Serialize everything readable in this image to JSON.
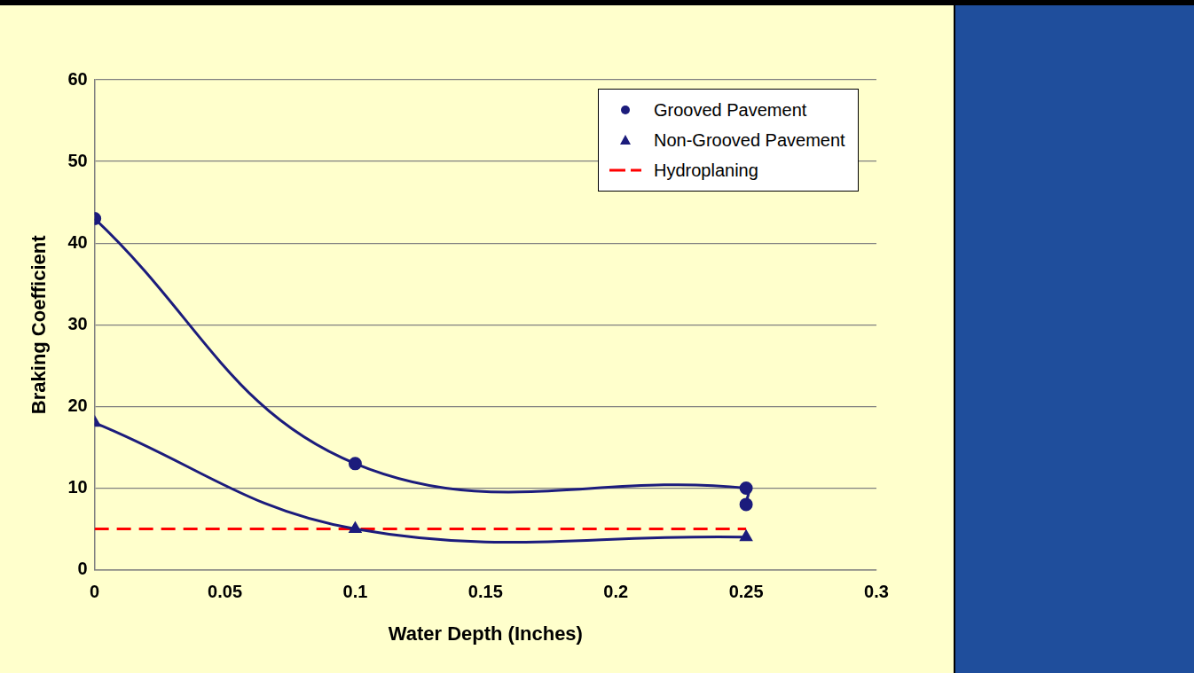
{
  "chart_data": {
    "type": "line",
    "x_label": "Water Depth (Inches)",
    "y_label": "Braking Coefficient",
    "xlim": [
      0,
      0.3
    ],
    "xticks": [
      0,
      0.05,
      0.1,
      0.15,
      0.2,
      0.25,
      0.3
    ],
    "ylim": [
      0,
      60
    ],
    "yticks": [
      0,
      10,
      20,
      30,
      40,
      50,
      60
    ],
    "grid": true,
    "legend": "upper right",
    "series": [
      {
        "name": "Grooved Pavement",
        "color": "#1c1c7c",
        "marker": "circle",
        "line_style": "solid",
        "x": [
          0,
          0.1,
          0.25,
          0.25
        ],
        "values": [
          43,
          13,
          10,
          8
        ]
      },
      {
        "name": "Non-Grooved Pavement",
        "color": "#1c1c7c",
        "marker": "triangle",
        "line_style": "solid",
        "x": [
          0,
          0.1,
          0.25
        ],
        "values": [
          18,
          5,
          4
        ]
      },
      {
        "name": "Hydroplaning",
        "color": "#ff0000",
        "marker": "none",
        "line_style": "dashed",
        "x": [
          0,
          0.25
        ],
        "values": [
          5,
          5
        ]
      }
    ]
  }
}
